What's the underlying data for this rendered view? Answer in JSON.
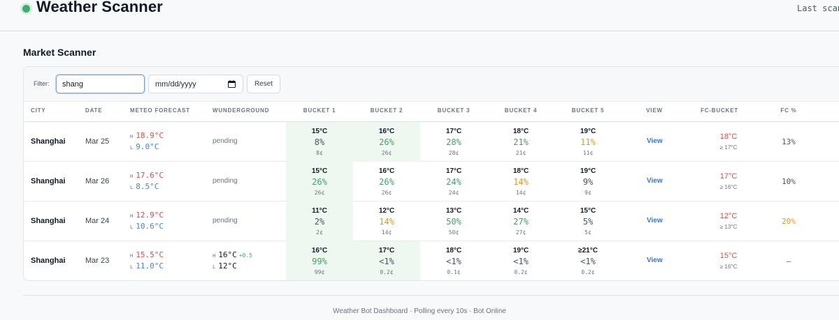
{
  "header": {
    "title": "Weather Scanner",
    "last_scan": "Last scan:"
  },
  "section": {
    "title": "Market Scanner"
  },
  "filter": {
    "label": "Filter:",
    "search_value": "shang",
    "date_placeholder": "mm/dd/yyyy",
    "reset_label": "Reset"
  },
  "columns": [
    "City",
    "Date",
    "Meteo Forecast",
    "Wunderground",
    "Bucket 1",
    "Bucket 2",
    "Bucket 3",
    "Bucket 4",
    "Bucket 5",
    "View",
    "FC-Bucket",
    "FC %"
  ],
  "colors": {
    "high": "#dc4c46",
    "low": "#4a80d6",
    "pct_green": "#3fa36a",
    "pct_orange": "#e09a2a",
    "pct_gray": "#4b5563",
    "accent": "#3b74d6"
  },
  "rows": [
    {
      "city": "Shanghai",
      "date": "Mar 25",
      "fc_h_key": "H",
      "fc_h": "18.9°C",
      "fc_l_key": "L",
      "fc_l": "9.0°C",
      "wu_status": "pending",
      "buckets": [
        {
          "temp": "15°C",
          "pct": "8%",
          "price": "8¢",
          "tone": "gray"
        },
        {
          "temp": "16°C",
          "pct": "26%",
          "price": "26¢",
          "tone": "green"
        },
        {
          "temp": "17°C",
          "pct": "28%",
          "price": "28¢",
          "tone": "green"
        },
        {
          "temp": "18°C",
          "pct": "21%",
          "price": "21¢",
          "tone": "green"
        },
        {
          "temp": "19°C",
          "pct": "11%",
          "price": "11¢",
          "tone": "orange"
        }
      ],
      "highlight": [
        0,
        1
      ],
      "view": "View",
      "fc_bucket": "18°C",
      "fc_bucket_sub": "≥ 17°C",
      "fc_pct": "13%",
      "fc_pct_tone": "gray"
    },
    {
      "city": "Shanghai",
      "date": "Mar 26",
      "fc_h_key": "H",
      "fc_h": "17.6°C",
      "fc_l_key": "L",
      "fc_l": "8.5°C",
      "wu_status": "pending",
      "buckets": [
        {
          "temp": "15°C",
          "pct": "26%",
          "price": "26¢",
          "tone": "green"
        },
        {
          "temp": "16°C",
          "pct": "26%",
          "price": "26¢",
          "tone": "green"
        },
        {
          "temp": "17°C",
          "pct": "24%",
          "price": "24¢",
          "tone": "green"
        },
        {
          "temp": "18°C",
          "pct": "14%",
          "price": "14¢",
          "tone": "orange"
        },
        {
          "temp": "19°C",
          "pct": "9%",
          "price": "9¢",
          "tone": "gray"
        }
      ],
      "highlight": [
        0
      ],
      "view": "View",
      "fc_bucket": "17°C",
      "fc_bucket_sub": "≥ 16°C",
      "fc_pct": "10%",
      "fc_pct_tone": "gray"
    },
    {
      "city": "Shanghai",
      "date": "Mar 24",
      "fc_h_key": "H",
      "fc_h": "12.9°C",
      "fc_l_key": "L",
      "fc_l": "10.6°C",
      "wu_status": "pending",
      "buckets": [
        {
          "temp": "11°C",
          "pct": "2%",
          "price": "2¢",
          "tone": "gray"
        },
        {
          "temp": "12°C",
          "pct": "14%",
          "price": "14¢",
          "tone": "orange"
        },
        {
          "temp": "13°C",
          "pct": "50%",
          "price": "50¢",
          "tone": "green"
        },
        {
          "temp": "14°C",
          "pct": "27%",
          "price": "27¢",
          "tone": "green"
        },
        {
          "temp": "15°C",
          "pct": "5%",
          "price": "5¢",
          "tone": "gray"
        }
      ],
      "highlight": [
        0
      ],
      "view": "View",
      "fc_bucket": "12°C",
      "fc_bucket_sub": "≥ 13°C",
      "fc_pct": "20%",
      "fc_pct_tone": "orange"
    },
    {
      "city": "Shanghai",
      "date": "Mar 23",
      "fc_h_key": "H",
      "fc_h": "15.5°C",
      "fc_l_key": "L",
      "fc_l": "11.0°C",
      "wu_status": "",
      "wu_h_key": "H",
      "wu_h": "16°C",
      "wu_delta": "+0.5",
      "wu_l_key": "L",
      "wu_l": "12°C",
      "buckets": [
        {
          "temp": "16°C",
          "pct": "99%",
          "price": "99¢",
          "tone": "green"
        },
        {
          "temp": "17°C",
          "pct": "<1%",
          "price": "0.2¢",
          "tone": "gray"
        },
        {
          "temp": "18°C",
          "pct": "<1%",
          "price": "0.1¢",
          "tone": "gray"
        },
        {
          "temp": "19°C",
          "pct": "<1%",
          "price": "0.2¢",
          "tone": "gray"
        },
        {
          "temp": "≥21°C",
          "pct": "<1%",
          "price": "0.2¢",
          "tone": "gray"
        }
      ],
      "highlight": [
        0,
        1
      ],
      "view": "View",
      "fc_bucket": "15°C",
      "fc_bucket_sub": "≥ 16°C",
      "fc_pct": "—",
      "fc_pct_tone": "gray"
    }
  ],
  "footer": {
    "text": "Weather Bot Dashboard · Polling every 10s · Bot Online"
  }
}
